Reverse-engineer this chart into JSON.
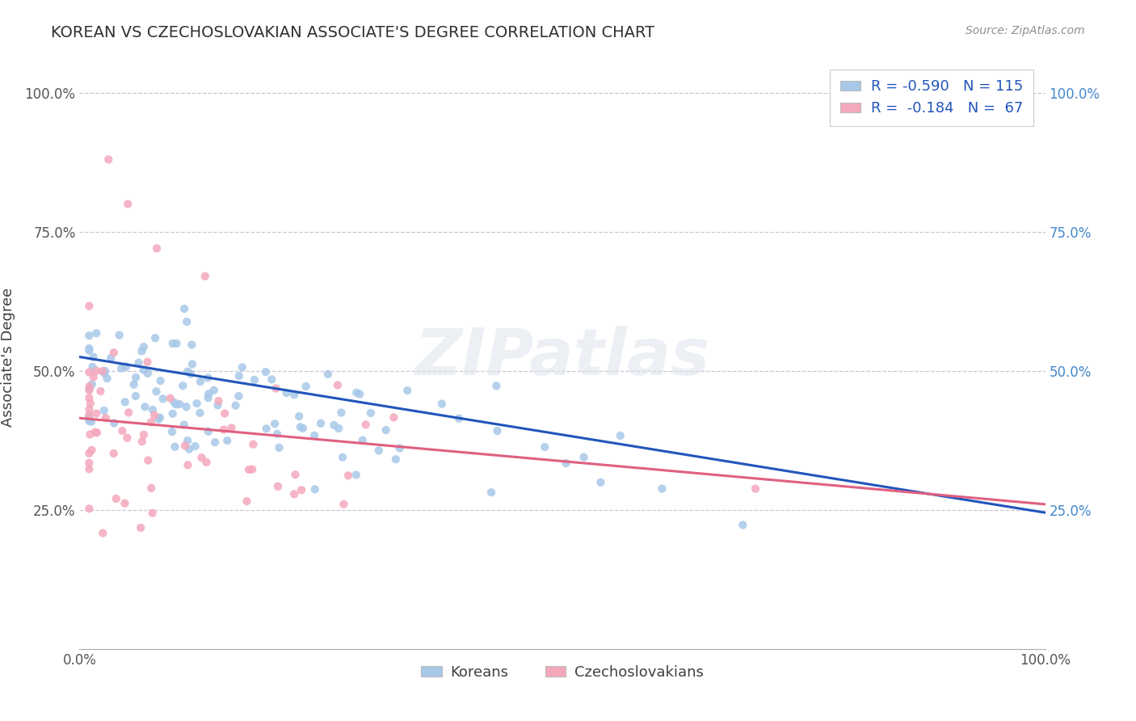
{
  "title": "KOREAN VS CZECHOSLOVAKIAN ASSOCIATE'S DEGREE CORRELATION CHART",
  "source": "Source: ZipAtlas.com",
  "ylabel": "Associate's Degree",
  "watermark": "ZIPatlas",
  "korean_color": "#a8c8e8",
  "czech_color": "#f4a8bc",
  "korean_line_color": "#2255bb",
  "czech_line_color": "#e06080",
  "background_color": "#ffffff",
  "grid_color": "#c8c8d8",
  "title_color": "#303030",
  "source_color": "#909090",
  "right_axis_color": "#4488cc",
  "legend_label_color": "#2255bb",
  "korean_legend": "R = -0.590   N = 115",
  "czech_legend": "R =  -0.184   N =  67",
  "korean_bottom_legend": "Koreans",
  "czech_bottom_legend": "Czechoslovakians"
}
